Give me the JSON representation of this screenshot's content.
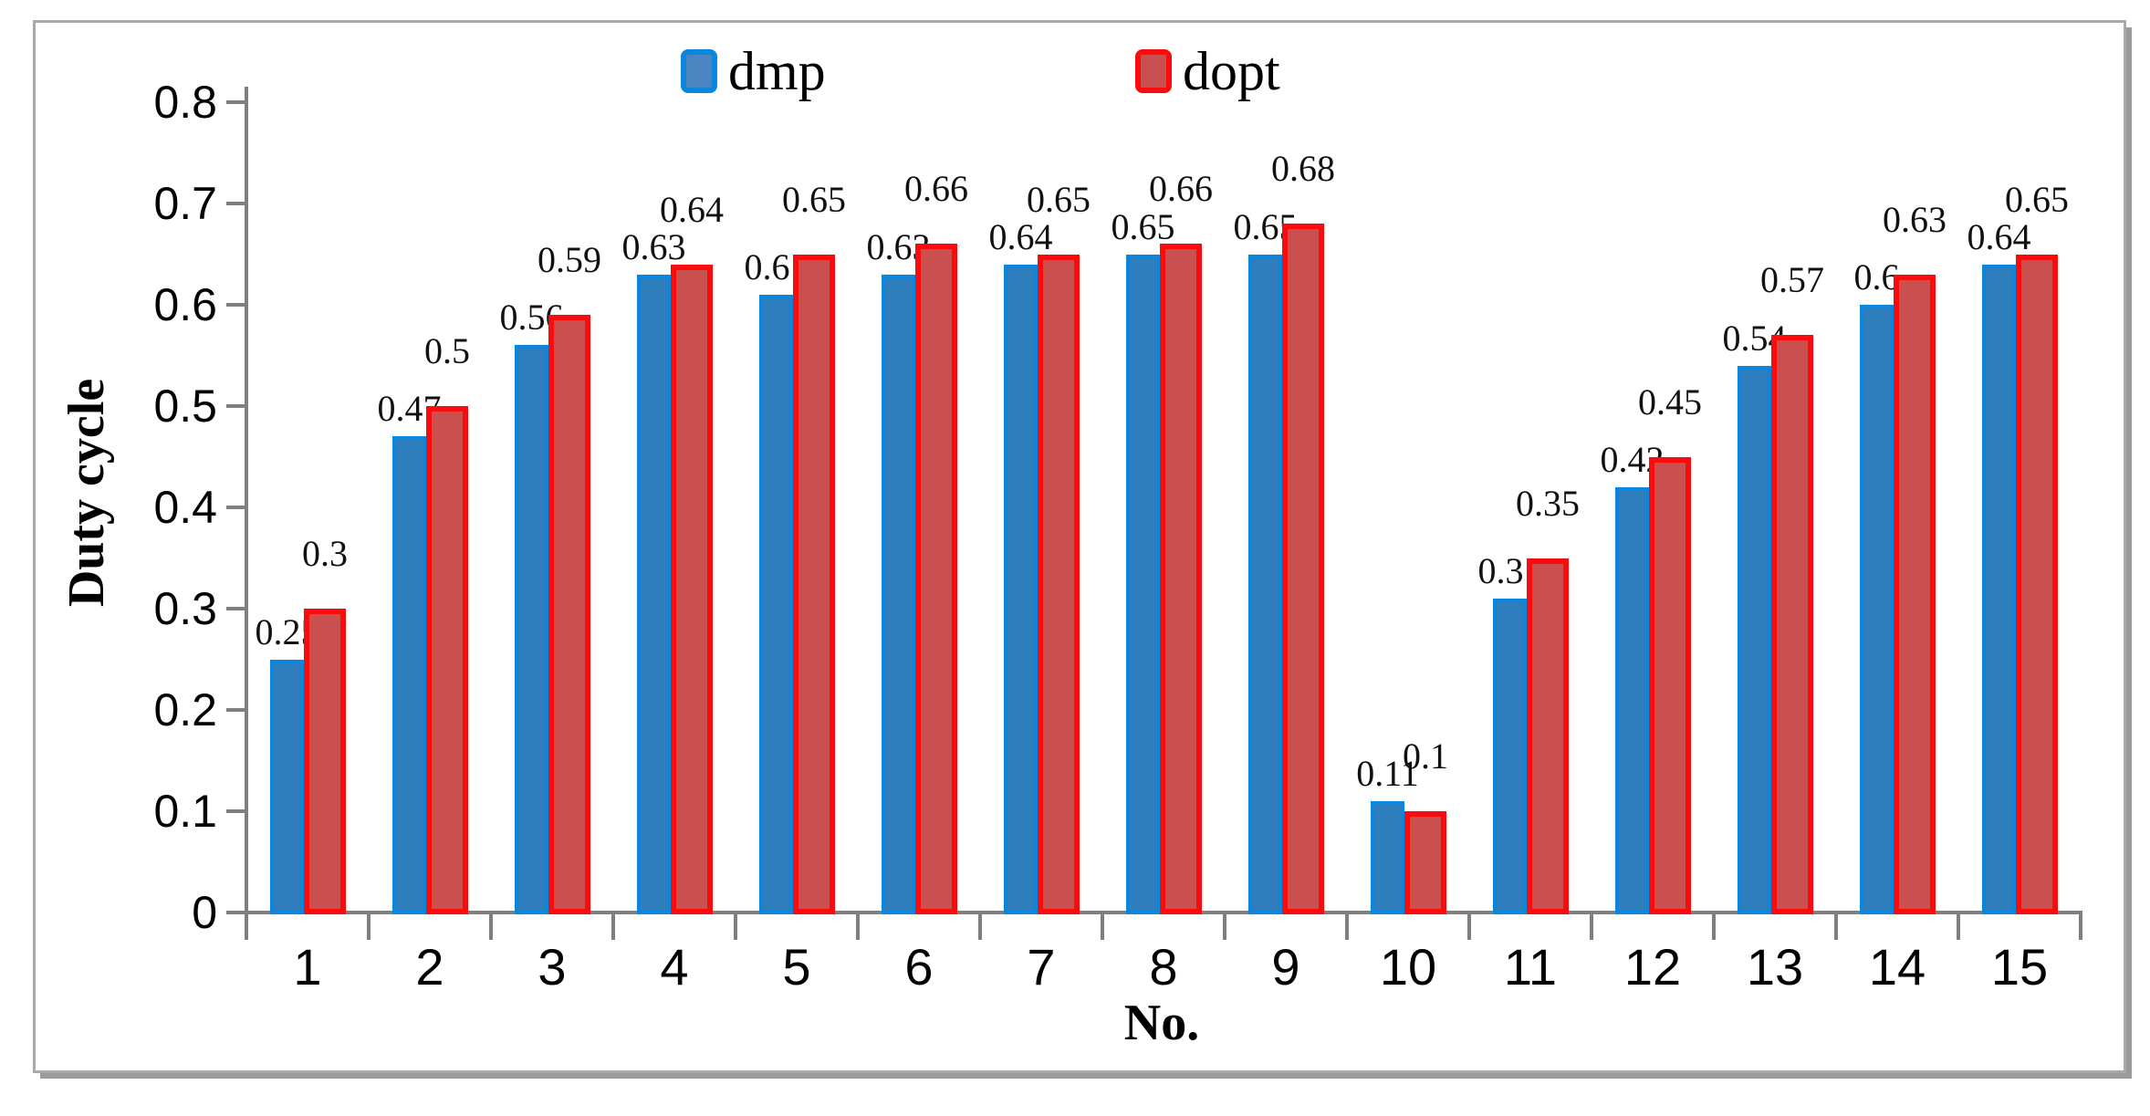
{
  "chart_data": {
    "type": "bar",
    "title": "",
    "xlabel": "No.",
    "ylabel": "Duty cycle",
    "categories": [
      "1",
      "2",
      "3",
      "4",
      "5",
      "6",
      "7",
      "8",
      "9",
      "10",
      "11",
      "12",
      "13",
      "14",
      "15"
    ],
    "series": [
      {
        "name": "dmp",
        "values": [
          0.25,
          0.47,
          0.56,
          0.63,
          0.61,
          0.63,
          0.64,
          0.65,
          0.65,
          0.11,
          0.31,
          0.42,
          0.54,
          0.6,
          0.64
        ],
        "bar_fill": "#2e7dbd",
        "bar_border": "#0a86dc",
        "swatch_fill": "#4c86c2",
        "swatch_border": "#0a86dc"
      },
      {
        "name": "dopt",
        "values": [
          0.3,
          0.5,
          0.59,
          0.64,
          0.65,
          0.66,
          0.65,
          0.66,
          0.68,
          0.1,
          0.35,
          0.45,
          0.57,
          0.63,
          0.65
        ],
        "bar_fill": "#c9504f",
        "bar_border": "#fb0c0c",
        "swatch_fill": "#c9504f",
        "swatch_border": "#fb0c0c"
      }
    ],
    "ylim": [
      0,
      0.8
    ],
    "ytick_interval": 0.1,
    "ytick_labels": [
      "0",
      "0.1",
      "0.2",
      "0.3",
      "0.4",
      "0.5",
      "0.6",
      "0.7",
      "0.8"
    ],
    "data_labels_shown": true,
    "grid": false,
    "legend_position": "top-center",
    "axis_color": "#7f7f7f",
    "text_color": "#000000",
    "frame_border_color": "#a9a9a9"
  }
}
